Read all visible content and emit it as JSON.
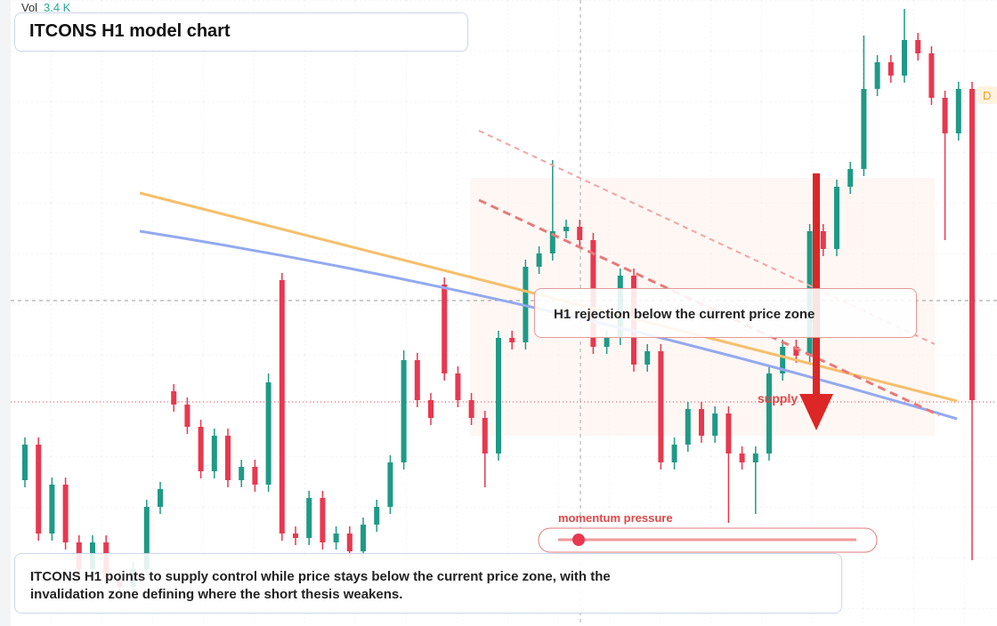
{
  "chart_data": {
    "type": "candlestick",
    "title": "ITCONS H1 model chart",
    "volume_label": "Vol",
    "volume_value": "3.4 K",
    "callout": "H1 rejection below the current price zone",
    "zone_label": "supply",
    "gauge_label": "momentum pressure",
    "marker": "D",
    "footer": "ITCONS H1 points to supply control while price stays below the current price zone, with the invalidation zone defining where the short thesis weakens.",
    "up_color": "#1f9a86",
    "down_color": "#e8384f",
    "ylim": [
      0,
      704
    ],
    "candles": [
      [
        164,
        212,
        156,
        204
      ],
      [
        204,
        212,
        96,
        104
      ],
      [
        104,
        167,
        96,
        159
      ],
      [
        159,
        167,
        86,
        94
      ],
      [
        94,
        102,
        56,
        64
      ],
      [
        64,
        102,
        56,
        94
      ],
      [
        94,
        102,
        46,
        54
      ],
      [
        54,
        62,
        36,
        44
      ],
      [
        44,
        72,
        36,
        64
      ],
      [
        64,
        142,
        56,
        134
      ],
      [
        134,
        162,
        126,
        154
      ],
      [
        264,
        272,
        241,
        249
      ],
      [
        249,
        257,
        216,
        224
      ],
      [
        224,
        232,
        166,
        174
      ],
      [
        174,
        222,
        166,
        214
      ],
      [
        214,
        222,
        156,
        164
      ],
      [
        164,
        187,
        156,
        179
      ],
      [
        179,
        187,
        151,
        159
      ],
      [
        159,
        284,
        151,
        274
      ],
      [
        389,
        397,
        96,
        104
      ],
      [
        104,
        112,
        91,
        99
      ],
      [
        99,
        152,
        91,
        144
      ],
      [
        144,
        152,
        86,
        94
      ],
      [
        94,
        112,
        86,
        104
      ],
      [
        104,
        112,
        76,
        84
      ],
      [
        84,
        122,
        76,
        114
      ],
      [
        114,
        142,
        106,
        134
      ],
      [
        134,
        192,
        126,
        184
      ],
      [
        184,
        310,
        176,
        299
      ],
      [
        299,
        307,
        246,
        254
      ],
      [
        254,
        262,
        226,
        234
      ],
      [
        384,
        392,
        276,
        284
      ],
      [
        284,
        292,
        246,
        254
      ],
      [
        254,
        262,
        226,
        234
      ],
      [
        234,
        242,
        156,
        194
      ],
      [
        194,
        332,
        186,
        324
      ],
      [
        324,
        332,
        311,
        319
      ],
      [
        319,
        412,
        311,
        404
      ],
      [
        404,
        427,
        396,
        419
      ],
      [
        419,
        524,
        411,
        444
      ],
      [
        444,
        457,
        436,
        449
      ],
      [
        449,
        457,
        426,
        434
      ],
      [
        434,
        442,
        306,
        314
      ],
      [
        314,
        332,
        306,
        324
      ],
      [
        324,
        402,
        316,
        394
      ],
      [
        394,
        402,
        286,
        294
      ],
      [
        294,
        317,
        286,
        309
      ],
      [
        309,
        317,
        176,
        184
      ],
      [
        184,
        212,
        176,
        204
      ],
      [
        204,
        252,
        196,
        244
      ],
      [
        244,
        252,
        206,
        214
      ],
      [
        214,
        247,
        206,
        239
      ],
      [
        239,
        247,
        116,
        194
      ],
      [
        194,
        202,
        176,
        184
      ],
      [
        184,
        202,
        126,
        194
      ],
      [
        194,
        292,
        186,
        284
      ],
      [
        284,
        322,
        276,
        314
      ],
      [
        314,
        322,
        296,
        304
      ],
      [
        304,
        452,
        296,
        444
      ],
      [
        444,
        452,
        416,
        424
      ],
      [
        424,
        502,
        416,
        494
      ],
      [
        494,
        522,
        486,
        514
      ],
      [
        514,
        664,
        506,
        604
      ],
      [
        604,
        642,
        596,
        634
      ],
      [
        634,
        642,
        611,
        619
      ],
      [
        619,
        694,
        611,
        659
      ],
      [
        659,
        667,
        636,
        644
      ],
      [
        644,
        652,
        586,
        594
      ],
      [
        594,
        602,
        434,
        554
      ],
      [
        554,
        612,
        546,
        604
      ],
      [
        604,
        612,
        74,
        254
      ]
    ]
  }
}
